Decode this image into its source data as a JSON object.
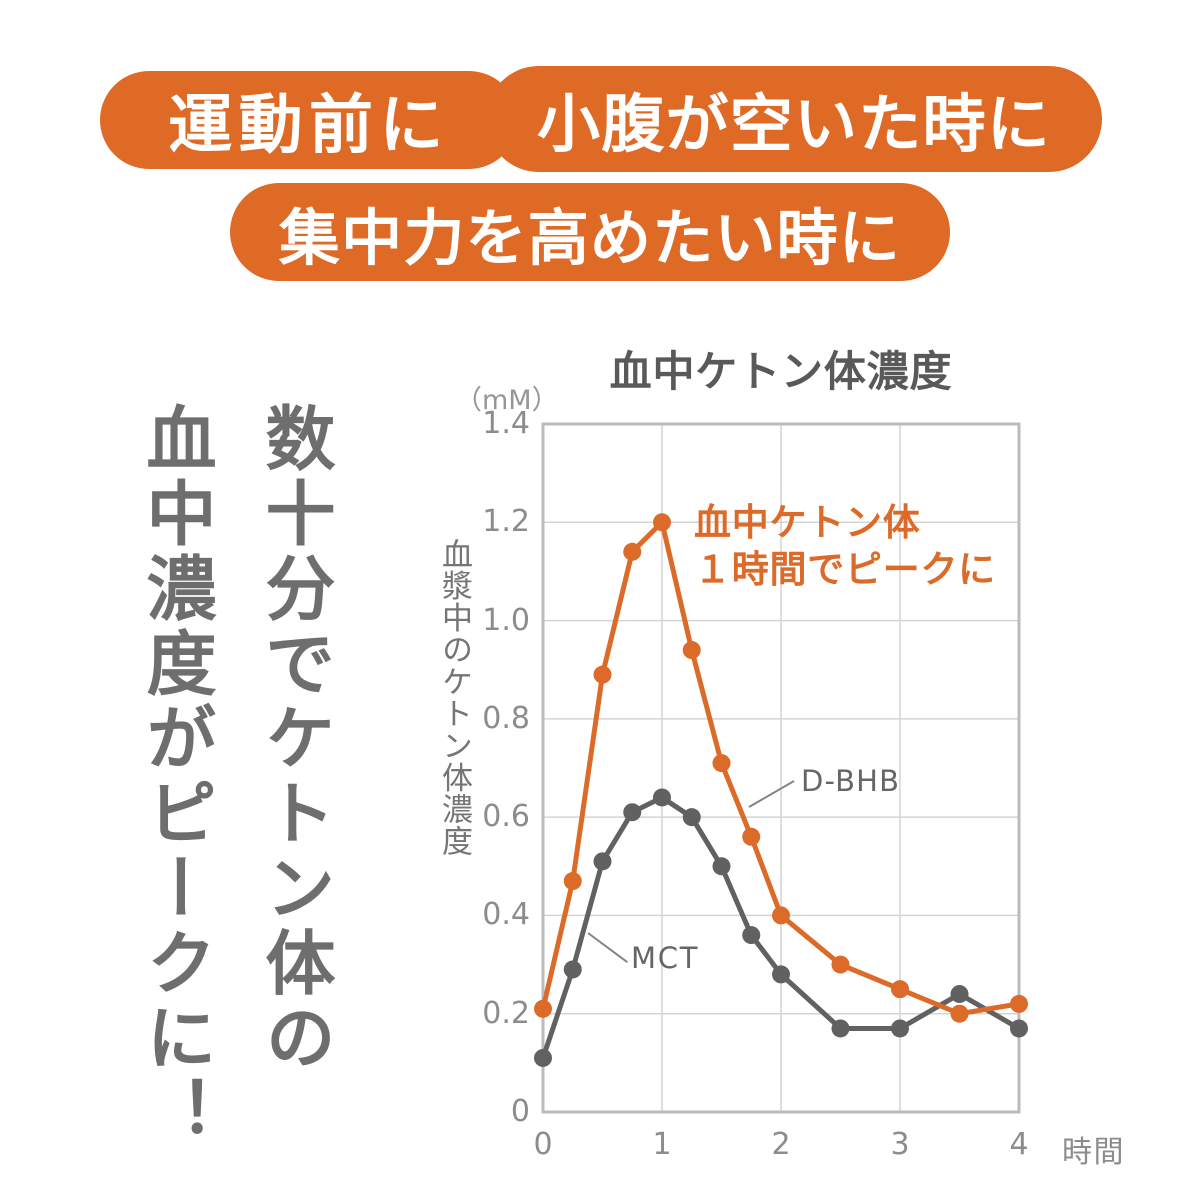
{
  "badges": [
    {
      "label": "運動前に"
    },
    {
      "label": "小腹が空いた時に"
    },
    {
      "label": "集中力を高めたい時に"
    }
  ],
  "headline": {
    "line1": "数十分でケトン体の",
    "line2": "血中濃度がピークに！"
  },
  "colors": {
    "badge_orange": "#DF6A26",
    "chart_orange": "#DC6A28",
    "mct_gray": "#616161",
    "grid": "#D4D4D4",
    "axis_border": "#BBBBBB",
    "tick_text": "#8C8C8C",
    "title_text": "#595959",
    "headline_gray": "#6E6E6E",
    "label_gray": "#666666"
  },
  "chart_data": {
    "type": "line",
    "title": "血中ケトン体濃度",
    "unit_label": "（mM）",
    "xlabel": "時間",
    "ylabel": "血漿中のケトン体濃度",
    "xlim": [
      0,
      4
    ],
    "ylim": [
      0,
      1.4
    ],
    "x_ticks": [
      "0",
      "1",
      "2",
      "3",
      "4"
    ],
    "y_ticks": [
      "0",
      "0.2",
      "0.4",
      "0.6",
      "0.8",
      "1.0",
      "1.2",
      "1.4"
    ],
    "grid": true,
    "legend": "inline-labels",
    "x": [
      0,
      0.25,
      0.5,
      0.75,
      1,
      1.25,
      1.5,
      1.75,
      2,
      2.5,
      3,
      3.5,
      4
    ],
    "series": [
      {
        "name": "MCT",
        "color": "#616161",
        "values": [
          0.11,
          0.29,
          0.51,
          0.61,
          0.64,
          0.6,
          0.5,
          0.36,
          0.28,
          0.17,
          0.17,
          0.24,
          0.17
        ]
      },
      {
        "name": "D-BHB",
        "color": "#DC6A28",
        "values": [
          0.21,
          0.47,
          0.89,
          1.14,
          1.2,
          0.94,
          0.71,
          0.56,
          0.4,
          0.3,
          0.25,
          0.2,
          0.22
        ]
      }
    ],
    "annotation": {
      "line1": "血中ケトン体",
      "line2": "１時間でピークに"
    }
  }
}
